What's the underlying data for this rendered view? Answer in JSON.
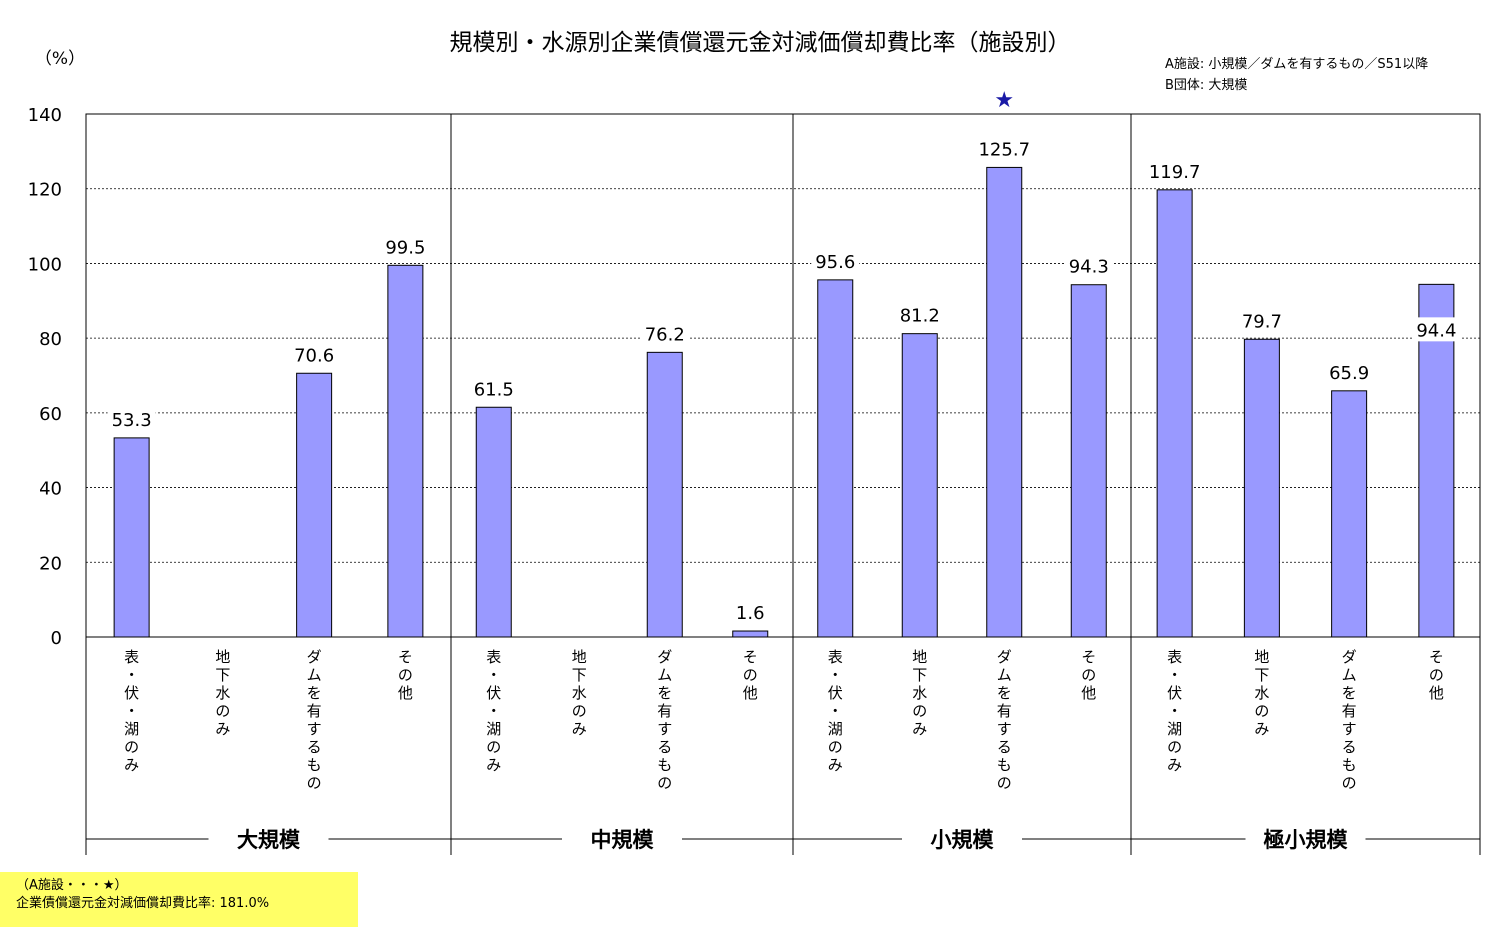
{
  "chart_data": {
    "type": "bar",
    "title": "規模別・水源別企業債償還元金対減価償却費比率（施設別）",
    "ylabel": "（%）",
    "ylim": [
      0,
      140
    ],
    "yticks": [
      0,
      20,
      40,
      60,
      80,
      100,
      120,
      140
    ],
    "grid": true,
    "bar_color": "#9999ff",
    "legend_lines": [
      "A施設: 小規模／ダムを有するもの／S51以降",
      "B団体: 大規模"
    ],
    "marker": {
      "symbol": "★",
      "group": "小規模",
      "category": "ダムを有するもの",
      "color": "#1a1aa6"
    },
    "groups": [
      {
        "name": "大規模",
        "categories": [
          "表・伏・湖のみ",
          "地下水のみ",
          "ダムを有するもの",
          "その他"
        ],
        "values": [
          53.3,
          null,
          70.6,
          99.5
        ]
      },
      {
        "name": "中規模",
        "categories": [
          "表・伏・湖のみ",
          "地下水のみ",
          "ダムを有するもの",
          "その他"
        ],
        "values": [
          61.5,
          null,
          76.2,
          1.6
        ]
      },
      {
        "name": "小規模",
        "categories": [
          "表・伏・湖のみ",
          "地下水のみ",
          "ダムを有するもの",
          "その他"
        ],
        "values": [
          95.6,
          81.2,
          125.7,
          94.3
        ]
      },
      {
        "name": "極小規模",
        "categories": [
          "表・伏・湖のみ",
          "地下水のみ",
          "ダムを有するもの",
          "その他"
        ],
        "values": [
          119.7,
          79.7,
          65.9,
          94.4
        ]
      }
    ]
  },
  "note": {
    "line1": "（A施設・・・★）",
    "line2": "企業債償還元金対減価償却費比率: 181.0%"
  }
}
